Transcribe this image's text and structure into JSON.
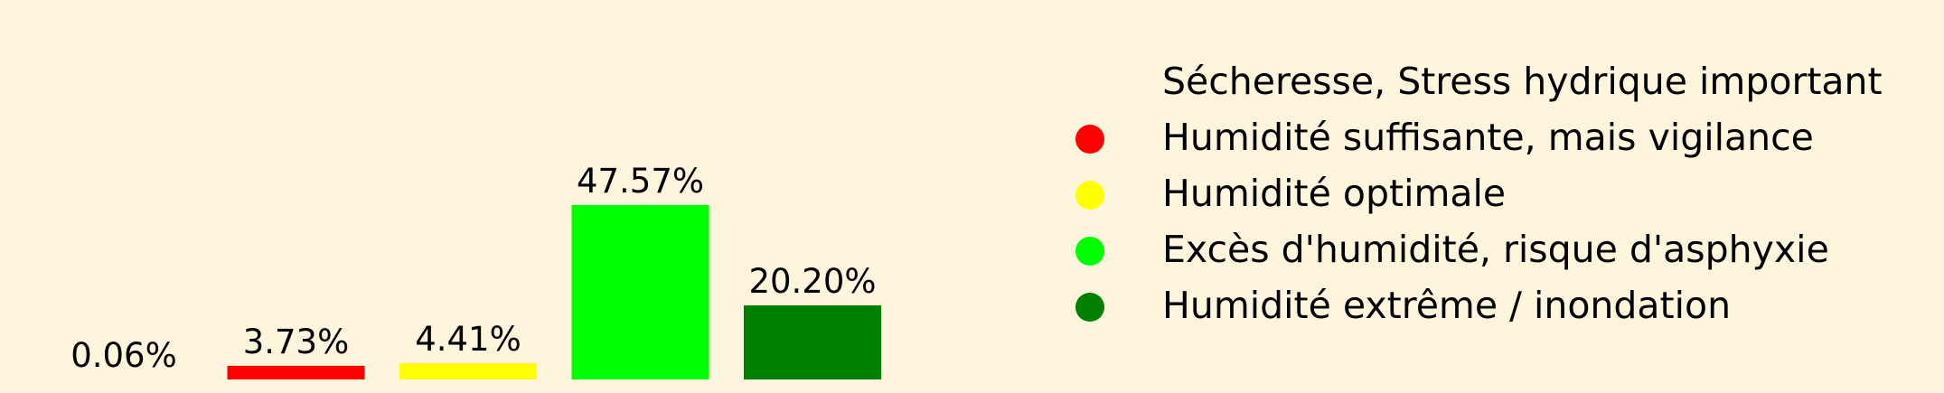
{
  "chart_data": {
    "type": "bar",
    "categories": [
      "Sécheresse, Stress hydrique important",
      "Humidité suffisante, mais vigilance",
      "Humidité optimale",
      "Excès d'humidité, risque d'asphyxie",
      "Humidité extrême / inondation"
    ],
    "values": [
      0.06,
      3.73,
      4.41,
      47.57,
      20.2
    ],
    "value_labels": [
      "0.06%",
      "3.73%",
      "4.41%",
      "47.57%",
      "20.20%"
    ],
    "colors": [
      "#fdf6dc",
      "#ff0000",
      "#ffff00",
      "#00ff00",
      "#008000"
    ],
    "ylim": [
      0,
      47.57
    ],
    "grid": false,
    "legend_position": "right"
  }
}
